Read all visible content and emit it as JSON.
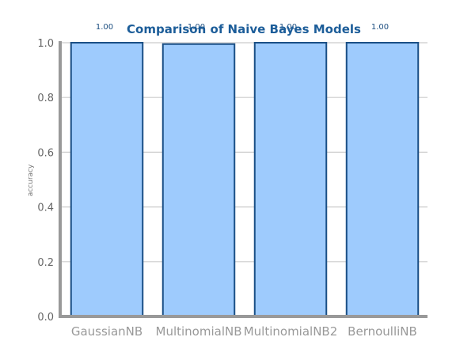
{
  "chart_data": {
    "type": "bar",
    "title": "Comparison of Naive Bayes Models",
    "xlabel": "",
    "ylabel": "accuracy",
    "categories": [
      "GaussianNB",
      "MultinomialNB",
      "MultinomialNB2",
      "BernoulliNB"
    ],
    "values": [
      1.0,
      0.995,
      1.0,
      1.0
    ],
    "data_labels": [
      "1.00",
      "1.00",
      "1.00",
      "1.00"
    ],
    "ylim": [
      0,
      1.0
    ],
    "yticks": [
      0.0,
      0.2,
      0.4,
      0.6,
      0.8,
      1.0
    ],
    "ytick_labels": [
      "0.0",
      "0.2",
      "0.4",
      "0.6",
      "0.8",
      "1.0"
    ],
    "grid": true,
    "colors": {
      "bar_fill": "#9ecbfd",
      "bar_edge": "#1a4f85",
      "title": "#1c5d99",
      "grid": "#cccccc",
      "axis": "#999999"
    }
  }
}
